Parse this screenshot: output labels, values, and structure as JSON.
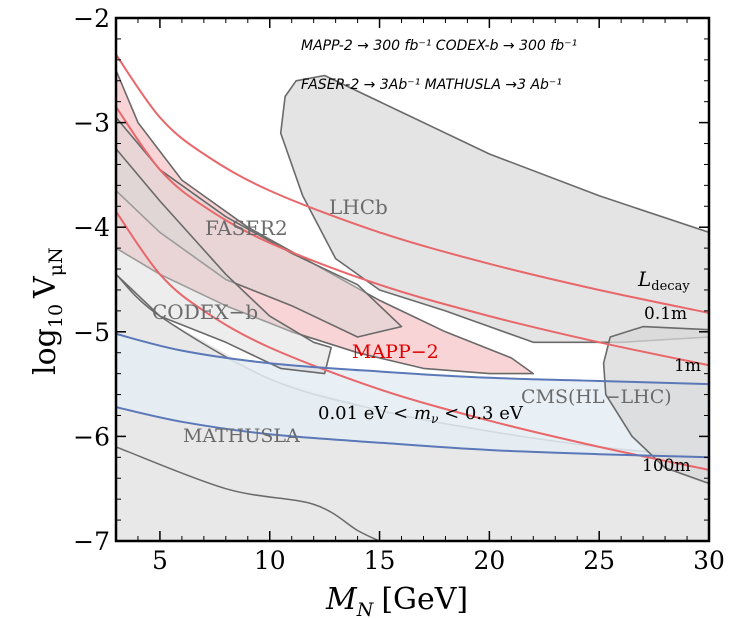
{
  "chart_data": {
    "type": "area",
    "xlabel_main": "M",
    "xlabel_sub": "N",
    "xlabel_unit": "[GeV]",
    "ylabel_main": "log",
    "ylabel_sub1": "10",
    "ylabel_var": "V",
    "ylabel_sub2": "μN",
    "xlim": [
      3,
      30
    ],
    "ylim": [
      -7,
      -2
    ],
    "xticks": [
      5,
      10,
      15,
      20,
      25,
      30
    ],
    "xtick_labels": [
      "5",
      "10",
      "15",
      "20",
      "25",
      "30"
    ],
    "yticks": [
      -7,
      -6,
      -5,
      -4,
      -3,
      -2
    ],
    "ytick_labels": [
      "−7",
      "−6",
      "−5",
      "−4",
      "−3",
      "−2"
    ],
    "notes": [
      "MAPP-2 → 300 fb⁻¹  CODEX-b → 300 fb⁻¹",
      "FASER-2 → 3Ab⁻¹  MATHUSLA →3 Ab⁻¹"
    ],
    "colors": {
      "decay_lines": "#e8676a",
      "seesaw_lines": "#5a78b8",
      "seesaw_band": "#e4ecf3",
      "regions": "#d8d8d8",
      "region_edge": "#6a6a6a",
      "mapp_fill": "#f7c9cc",
      "mapp_text": "#e00000"
    },
    "series": [
      {
        "name": "MATHUSLA",
        "kind": "region",
        "upper": [
          [
            3,
            -4.45
          ],
          [
            5,
            -4.85
          ],
          [
            10,
            -5.45
          ],
          [
            15,
            -5.75
          ],
          [
            20,
            -5.95
          ],
          [
            25,
            -6.1
          ],
          [
            30,
            -6.2
          ]
        ],
        "lower": [
          [
            3,
            -6.1
          ],
          [
            8,
            -6.5
          ],
          [
            12,
            -6.65
          ],
          [
            14,
            -6.9
          ],
          [
            15,
            -7
          ]
        ]
      },
      {
        "name": "LHCb",
        "kind": "region",
        "outline": [
          [
            11.2,
            -2.6
          ],
          [
            12.5,
            -2.55
          ],
          [
            16,
            -2.9
          ],
          [
            20,
            -3.3
          ],
          [
            25,
            -3.7
          ],
          [
            30,
            -4.05
          ],
          [
            30,
            -5.05
          ],
          [
            26,
            -5.1
          ],
          [
            22,
            -5.1
          ],
          [
            18,
            -4.8
          ],
          [
            15,
            -4.6
          ],
          [
            13,
            -4.3
          ],
          [
            11.5,
            -3.7
          ],
          [
            10.5,
            -3.1
          ],
          [
            10.7,
            -2.75
          ]
        ]
      },
      {
        "name": "FASER2",
        "kind": "region",
        "outline": [
          [
            3,
            -2.95
          ],
          [
            5,
            -3.45
          ],
          [
            8,
            -3.9
          ],
          [
            11,
            -4.25
          ],
          [
            14,
            -4.55
          ],
          [
            16,
            -4.95
          ],
          [
            14,
            -5.05
          ],
          [
            11,
            -4.75
          ],
          [
            8,
            -4.5
          ],
          [
            5,
            -4.05
          ],
          [
            3,
            -3.65
          ]
        ]
      },
      {
        "name": "CODEX-b",
        "kind": "region",
        "outline": [
          [
            3,
            -3.25
          ],
          [
            5,
            -3.75
          ],
          [
            8,
            -4.45
          ],
          [
            10,
            -4.85
          ],
          [
            12,
            -5.1
          ],
          [
            12.8,
            -5.15
          ],
          [
            12.5,
            -5.4
          ],
          [
            10.5,
            -5.35
          ],
          [
            8,
            -5.1
          ],
          [
            5,
            -4.85
          ],
          [
            3,
            -4.45
          ]
        ]
      },
      {
        "name": "MAPP-2",
        "kind": "region",
        "outline": [
          [
            3,
            -2.5
          ],
          [
            4,
            -3.0
          ],
          [
            6,
            -3.55
          ],
          [
            9,
            -4.0
          ],
          [
            12,
            -4.35
          ],
          [
            15,
            -4.7
          ],
          [
            18,
            -5.0
          ],
          [
            21,
            -5.25
          ],
          [
            22,
            -5.4
          ],
          [
            20,
            -5.4
          ],
          [
            17,
            -5.35
          ],
          [
            14,
            -5.2
          ],
          [
            11,
            -5.0
          ],
          [
            8,
            -4.75
          ],
          [
            5,
            -4.45
          ],
          [
            3,
            -4.2
          ]
        ]
      },
      {
        "name": "CMS(HL-LHC)",
        "kind": "region",
        "outline": [
          [
            25.5,
            -5.05
          ],
          [
            27,
            -4.95
          ],
          [
            30,
            -4.98
          ],
          [
            30,
            -6.45
          ],
          [
            28,
            -6.3
          ],
          [
            26.5,
            -6.0
          ],
          [
            25.3,
            -5.6
          ],
          [
            25.2,
            -5.3
          ]
        ]
      },
      {
        "name": "0.1m",
        "kind": "line",
        "points": [
          [
            3,
            -2.35
          ],
          [
            5,
            -2.95
          ],
          [
            7,
            -3.3
          ],
          [
            10,
            -3.65
          ],
          [
            15,
            -4.05
          ],
          [
            20,
            -4.35
          ],
          [
            25,
            -4.6
          ],
          [
            30,
            -4.82
          ]
        ]
      },
      {
        "name": "1m",
        "kind": "line",
        "points": [
          [
            3,
            -2.85
          ],
          [
            5,
            -3.45
          ],
          [
            7,
            -3.8
          ],
          [
            10,
            -4.15
          ],
          [
            15,
            -4.55
          ],
          [
            20,
            -4.85
          ],
          [
            25,
            -5.1
          ],
          [
            30,
            -5.32
          ]
        ]
      },
      {
        "name": "100m",
        "kind": "line",
        "points": [
          [
            3,
            -3.85
          ],
          [
            5,
            -4.45
          ],
          [
            7,
            -4.8
          ],
          [
            10,
            -5.15
          ],
          [
            15,
            -5.55
          ],
          [
            20,
            -5.85
          ],
          [
            25,
            -6.1
          ],
          [
            30,
            -6.32
          ]
        ]
      },
      {
        "name": "upper-seesaw",
        "kind": "line",
        "points": [
          [
            3,
            -5.02
          ],
          [
            6,
            -5.18
          ],
          [
            10,
            -5.3
          ],
          [
            15,
            -5.38
          ],
          [
            20,
            -5.44
          ],
          [
            25,
            -5.47
          ],
          [
            30,
            -5.5
          ]
        ]
      },
      {
        "name": "lower-seesaw",
        "kind": "line",
        "points": [
          [
            3,
            -5.72
          ],
          [
            6,
            -5.86
          ],
          [
            10,
            -5.98
          ],
          [
            15,
            -6.06
          ],
          [
            20,
            -6.13
          ],
          [
            25,
            -6.17
          ],
          [
            30,
            -6.2
          ]
        ]
      }
    ],
    "labels": {
      "lhcb": "LHCb",
      "faser": "FASER2",
      "codex": "CODEX−b",
      "mapp": "MAPP−2",
      "cms": "CMS(HL−LHC)",
      "mathusla": "MATHUSLA",
      "ldecay_main": "L",
      "ldecay_sub": "decay",
      "l01": "0.1m",
      "l1": "1m",
      "l100": "100m",
      "mnu_left": "0.01 eV < ",
      "mnu_var": "m",
      "mnu_sub": "ν",
      "mnu_right": " < 0.3 eV"
    }
  }
}
